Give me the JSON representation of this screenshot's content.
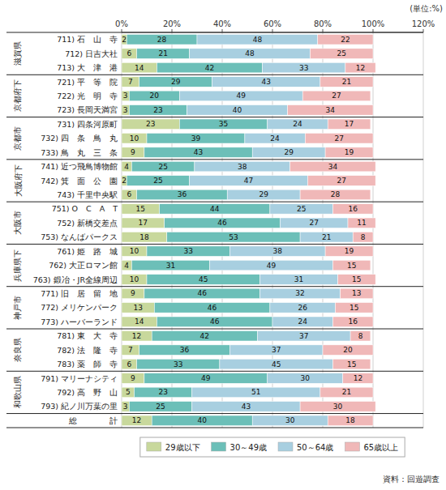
{
  "chart_data": {
    "type": "bar",
    "orientation": "horizontal",
    "stacked": true,
    "data_labels": true,
    "grid": true,
    "legend": "bottom",
    "xlabel": "(単位:%)",
    "annotations": [
      "資料：回遊調査"
    ],
    "categories": [
      "711) 石　山　寺",
      "712) 日吉大社",
      "713) 大　津　港",
      "721) 平　等　院",
      "722) 光　明　寺",
      "723) 長岡天満宮",
      "731) 四条河原町",
      "732) 四　条　鳥　丸",
      "733) 鳥　丸　三　条",
      "741) 近つ飛鳥博物館",
      "742) 箕　面　公　園",
      "743) 千里中央駅",
      "751) O　C　A　T",
      "752) 新橋交差点",
      "753) なんばパークス",
      "761) 姫　路　城",
      "762) 大正ロマン館",
      "763) 鍛冶・JR全線周辺",
      "771) 旧　居　留　地",
      "772) メリケンパーク",
      "773) ハーバーランド",
      "781) 東　大　寺",
      "782) 法　隆　寺",
      "783) 薬　師　寺",
      "791) マリーナシティ",
      "792) 高　野　山",
      "793) 紀ノ川万葉の里",
      "総　　　　計"
    ],
    "groups": [
      {
        "name": "滋賀県",
        "rows": [
          0,
          1,
          2
        ]
      },
      {
        "name": "京都府下",
        "rows": [
          3,
          4,
          5
        ]
      },
      {
        "name": "京都市",
        "rows": [
          6,
          7,
          8
        ]
      },
      {
        "name": "大阪府下",
        "rows": [
          9,
          10,
          11
        ]
      },
      {
        "name": "大阪市",
        "rows": [
          12,
          13,
          14
        ]
      },
      {
        "name": "兵庫県下",
        "rows": [
          15,
          16,
          17
        ]
      },
      {
        "name": "神戸市",
        "rows": [
          18,
          19,
          20
        ]
      },
      {
        "name": "奈良県",
        "rows": [
          21,
          22,
          23
        ]
      },
      {
        "name": "和歌山県",
        "rows": [
          24,
          25,
          26
        ]
      }
    ],
    "series": [
      {
        "name": "29歳以下",
        "color": "#c8d89c",
        "values": [
          2,
          6,
          14,
          7,
          3,
          3,
          23,
          10,
          9,
          4,
          2,
          6,
          15,
          17,
          18,
          10,
          4,
          10,
          9,
          13,
          14,
          12,
          7,
          6,
          9,
          5,
          3,
          12
        ]
      },
      {
        "name": "30～49歳",
        "color": "#6cbfb8",
        "values": [
          28,
          21,
          42,
          29,
          20,
          23,
          35,
          39,
          43,
          25,
          25,
          36,
          44,
          46,
          53,
          33,
          31,
          45,
          46,
          46,
          46,
          42,
          36,
          33,
          49,
          23,
          25,
          40
        ]
      },
      {
        "name": "50～64歳",
        "color": "#a8cfe0",
        "values": [
          48,
          48,
          33,
          43,
          49,
          40,
          24,
          24,
          29,
          38,
          47,
          29,
          25,
          27,
          21,
          38,
          49,
          31,
          32,
          26,
          24,
          37,
          37,
          45,
          30,
          51,
          43,
          30
        ]
      },
      {
        "name": "65歳以上",
        "color": "#f0b8b8",
        "values": [
          22,
          25,
          12,
          21,
          27,
          34,
          17,
          27,
          19,
          34,
          27,
          28,
          16,
          11,
          8,
          19,
          15,
          15,
          13,
          15,
          16,
          8,
          20,
          15,
          12,
          21,
          30,
          18
        ]
      }
    ],
    "xlim": [
      0,
      120
    ],
    "xticks": [
      {
        "value": 0,
        "label": "0%"
      },
      {
        "value": 20,
        "label": "20%"
      },
      {
        "value": 40,
        "label": "40%"
      },
      {
        "value": 60,
        "label": "60%"
      },
      {
        "value": 80,
        "label": "80%"
      },
      {
        "value": 100,
        "label": "100%"
      },
      {
        "value": 120,
        "label": "120%"
      }
    ]
  }
}
